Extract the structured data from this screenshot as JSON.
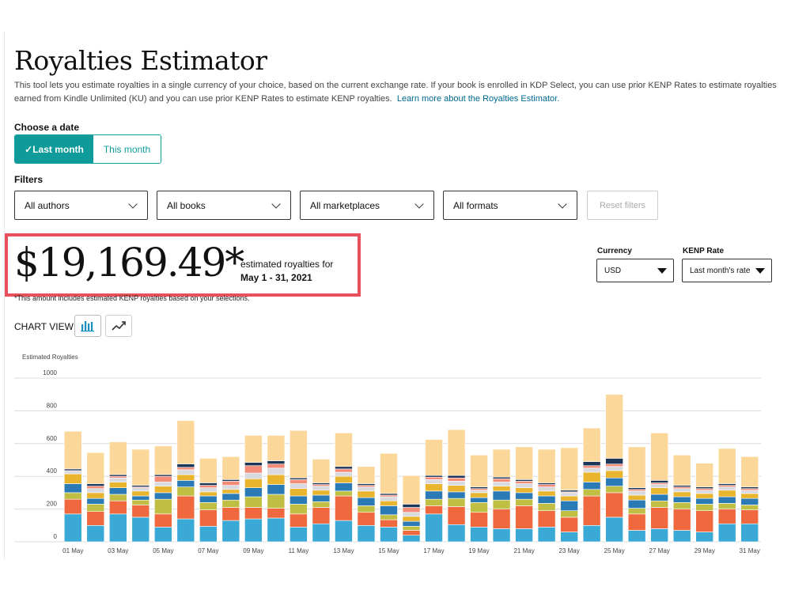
{
  "header": {
    "title": "Royalties Estimator",
    "intro": "This tool lets you estimate royalties in a single currency of your choice, based on the current exchange rate. If your book is enrolled in KDP Select, you can use prior KENP Rates to estimate royalties earned from Kindle Unlimited (KU) and you can use prior KENP Rates to estimate KENP royalties.",
    "learn_more_link": "Learn more about the Royalties Estimator."
  },
  "date_picker": {
    "label": "Choose a date",
    "options": [
      "✓Last month",
      "This month"
    ],
    "selected": "Last month"
  },
  "filters": {
    "label": "Filters",
    "authors": "All authors",
    "books": "All books",
    "marketplaces": "All marketplaces",
    "formats": "All formats",
    "reset": "Reset filters"
  },
  "summary": {
    "amount": "$19,169.49*",
    "caption": "estimated royalties for",
    "date_range": "May 1 - 31, 2021",
    "footnote": "*This amount includes estimated KENP royalties based on your selections."
  },
  "controls": {
    "currency_label": "Currency",
    "currency_value": "USD",
    "kenp_label": "KENP Rate",
    "kenp_value": "Last month's rate"
  },
  "chart_view": {
    "label": "CHART VIEW",
    "bar_icon": "bar-chart-icon",
    "line_icon": "line-chart-icon",
    "active": "bar"
  },
  "colors": {
    "teal": "#109b9b",
    "highlight": "#e8505b",
    "link": "#00698f"
  },
  "chart_data": {
    "type": "bar",
    "stacked": true,
    "ylabel": "Estimated Royalties",
    "ylim": [
      0,
      1000
    ],
    "yticks": [
      0,
      200,
      400,
      600,
      800,
      1000
    ],
    "grid": true,
    "categories": [
      "01 May",
      "02 May",
      "03 May",
      "04 May",
      "05 May",
      "06 May",
      "07 May",
      "08 May",
      "09 May",
      "10 May",
      "11 May",
      "12 May",
      "13 May",
      "14 May",
      "15 May",
      "16 May",
      "17 May",
      "18 May",
      "19 May",
      "20 May",
      "21 May",
      "22 May",
      "23 May",
      "24 May",
      "25 May",
      "26 May",
      "27 May",
      "28 May",
      "29 May",
      "30 May",
      "31 May"
    ],
    "xtick_labels": [
      "01 May",
      "",
      "03 May",
      "",
      "05 May",
      "",
      "07 May",
      "",
      "09 May",
      "",
      "11 May",
      "",
      "13 May",
      "",
      "15 May",
      "",
      "17 May",
      "",
      "19 May",
      "",
      "21 May",
      "",
      "23 May",
      "",
      "25 May",
      "",
      "27 May",
      "",
      "29 May",
      "",
      "31 May"
    ],
    "series": [
      {
        "color": "#3aa9d6",
        "values": [
          170,
          100,
          170,
          150,
          90,
          140,
          95,
          130,
          140,
          145,
          90,
          110,
          130,
          100,
          90,
          40,
          170,
          105,
          90,
          80,
          80,
          90,
          60,
          100,
          150,
          70,
          80,
          70,
          60,
          110,
          110
        ]
      },
      {
        "color": "#f0683d",
        "values": [
          90,
          85,
          80,
          75,
          80,
          140,
          100,
          80,
          70,
          60,
          80,
          100,
          150,
          80,
          45,
          30,
          50,
          110,
          90,
          120,
          140,
          100,
          90,
          180,
          150,
          100,
          130,
          130,
          130,
          90,
          85
        ]
      },
      {
        "color": "#c0bf43",
        "values": [
          40,
          45,
          40,
          30,
          90,
          55,
          45,
          45,
          65,
          85,
          60,
          35,
          30,
          40,
          30,
          25,
          40,
          50,
          60,
          55,
          40,
          45,
          40,
          40,
          40,
          35,
          40,
          40,
          40,
          35,
          30
        ]
      },
      {
        "color": "#2a7ab5",
        "values": [
          55,
          35,
          40,
          25,
          40,
          40,
          40,
          40,
          55,
          60,
          50,
          40,
          50,
          50,
          55,
          30,
          50,
          40,
          30,
          55,
          40,
          45,
          60,
          45,
          50,
          50,
          40,
          35,
          35,
          40,
          40
        ]
      },
      {
        "color": "#e9b42e",
        "values": [
          60,
          35,
          35,
          30,
          40,
          35,
          25,
          25,
          55,
          60,
          45,
          30,
          40,
          40,
          30,
          30,
          45,
          40,
          30,
          30,
          30,
          30,
          30,
          60,
          45,
          30,
          40,
          30,
          30,
          40,
          30
        ]
      },
      {
        "color": "#d9d9e0",
        "values": [
          20,
          25,
          25,
          20,
          25,
          30,
          25,
          25,
          35,
          40,
          30,
          25,
          25,
          25,
          25,
          25,
          25,
          25,
          15,
          25,
          25,
          25,
          20,
          25,
          25,
          25,
          20,
          20,
          20,
          20,
          20
        ]
      },
      {
        "color": "#f48c7a",
        "values": [
          0,
          15,
          10,
          5,
          35,
          15,
          15,
          25,
          45,
          25,
          25,
          10,
          20,
          10,
          10,
          30,
          15,
          20,
          10,
          20,
          15,
          15,
          5,
          15,
          15,
          10,
          10,
          10,
          10,
          10,
          10
        ]
      },
      {
        "color": "#1d3557",
        "values": [
          10,
          15,
          10,
          10,
          10,
          20,
          15,
          10,
          20,
          20,
          10,
          10,
          15,
          10,
          10,
          20,
          10,
          15,
          10,
          10,
          10,
          10,
          10,
          25,
          35,
          10,
          15,
          10,
          10,
          10,
          10
        ]
      },
      {
        "color": "#fcd79a",
        "values": [
          230,
          190,
          200,
          220,
          175,
          265,
          150,
          140,
          165,
          155,
          290,
          145,
          205,
          105,
          245,
          175,
          220,
          280,
          195,
          170,
          200,
          205,
          260,
          205,
          390,
          250,
          290,
          185,
          145,
          215,
          185
        ]
      }
    ]
  }
}
